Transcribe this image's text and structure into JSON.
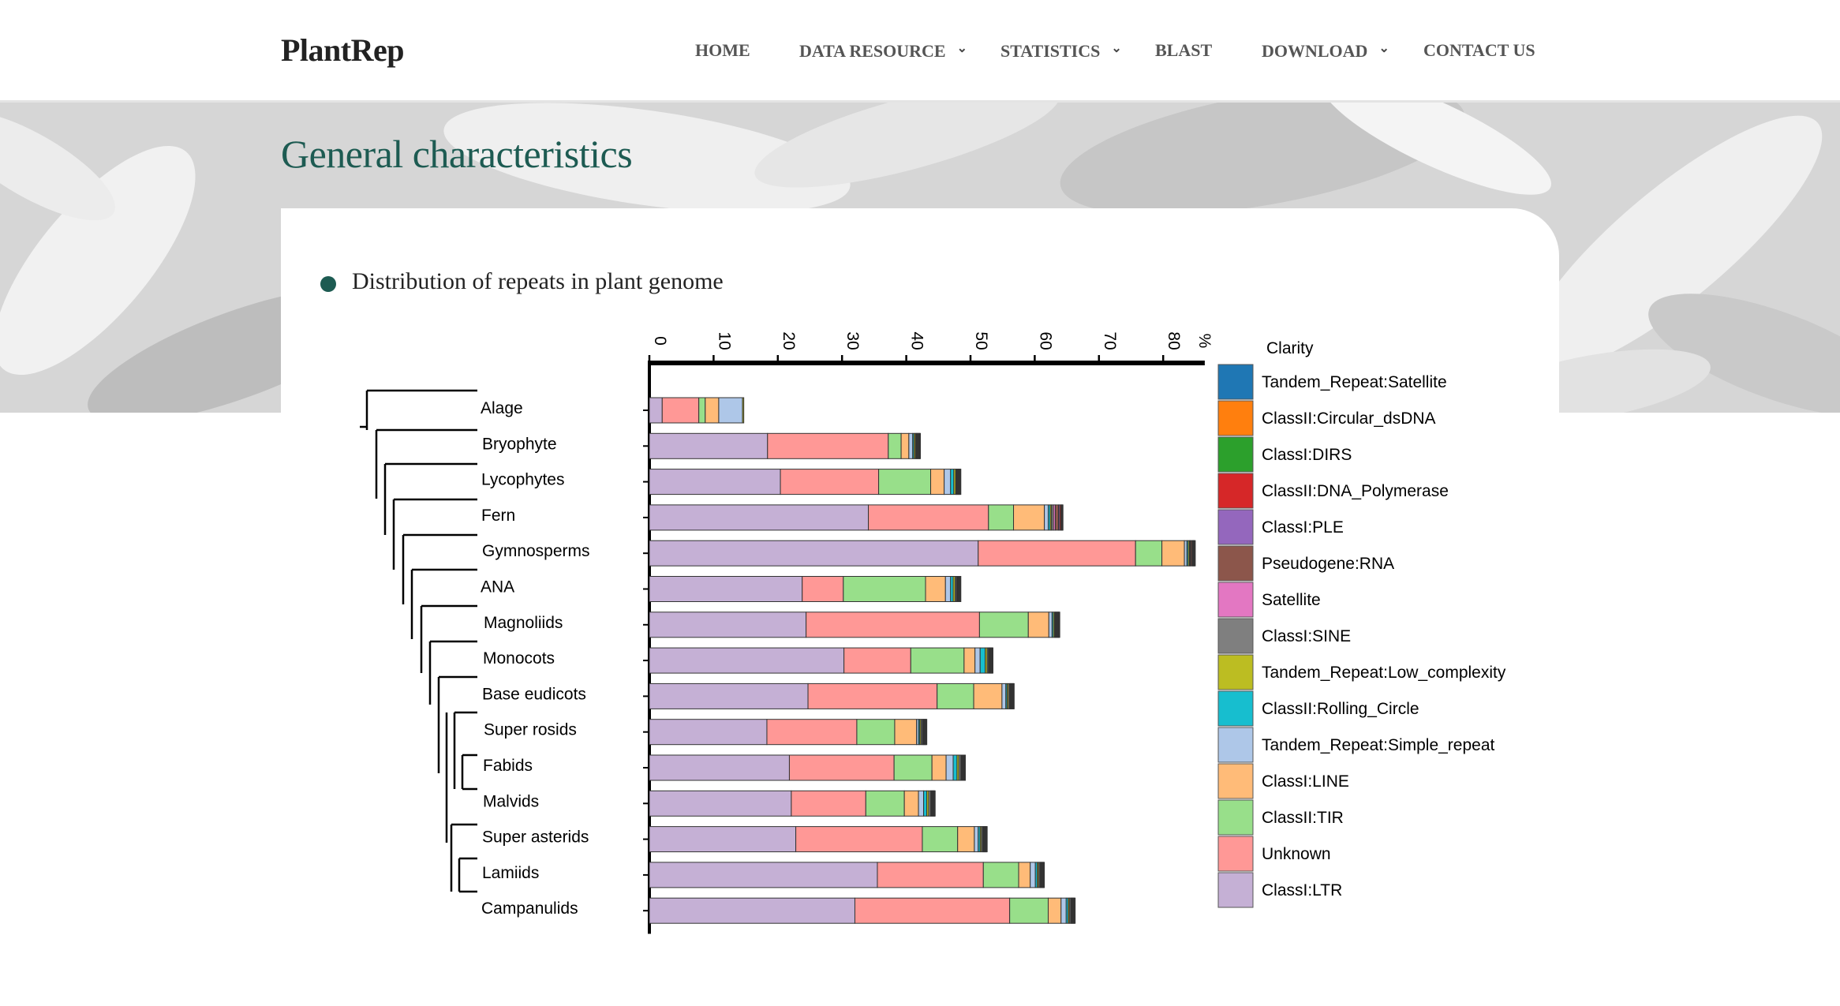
{
  "site": {
    "logo": "PlantRep",
    "nav": [
      {
        "label": "HOME",
        "dropdown": false
      },
      {
        "label": "DATA RESOURCE",
        "dropdown": true
      },
      {
        "label": "STATISTICS",
        "dropdown": true
      },
      {
        "label": "BLAST",
        "dropdown": false
      },
      {
        "label": "DOWNLOAD",
        "dropdown": true
      },
      {
        "label": "CONTACT US",
        "dropdown": false
      }
    ]
  },
  "page": {
    "title": "General characteristics",
    "section_title": "Distribution of repeats in plant genome"
  },
  "chart_data": {
    "type": "bar",
    "orientation": "horizontal",
    "stacked": true,
    "axis_unit": "%",
    "xlim": [
      0,
      85
    ],
    "ticks": [
      0,
      10,
      20,
      30,
      40,
      50,
      60,
      70,
      80
    ],
    "legend_title": "Clarity",
    "legend_position": "right",
    "categories": [
      "Alage",
      "Bryophyte",
      "Lycophytes",
      "Fern",
      "Gymnosperms",
      "ANA",
      "Magnoliids",
      "Monocots",
      "Base eudicots",
      "Super rosids",
      "Fabids",
      "Malvids",
      "Super asterids",
      "Lamiids",
      "Campanulids"
    ],
    "series": [
      {
        "name": "ClassI:LTR",
        "color": "#c5b0d5",
        "values": [
          2,
          18.4,
          20.4,
          34.1,
          51.2,
          23.8,
          24.4,
          30.3,
          24.7,
          18.3,
          21.8,
          22.1,
          22.8,
          35.5,
          32.0
        ]
      },
      {
        "name": "Unknown",
        "color": "#ff9896",
        "values": [
          5.7,
          18.8,
          15.3,
          18.7,
          24.5,
          6.4,
          27.0,
          10.4,
          20.1,
          14.0,
          16.3,
          11.6,
          19.7,
          16.5,
          24.1
        ]
      },
      {
        "name": "ClassII:TIR",
        "color": "#98df8a",
        "values": [
          1.0,
          2.0,
          8.1,
          3.9,
          4.1,
          12.8,
          7.6,
          8.3,
          5.7,
          5.9,
          5.9,
          6.0,
          5.5,
          5.5,
          6.0
        ]
      },
      {
        "name": "ClassI:LINE",
        "color": "#ffbb78",
        "values": [
          2.1,
          1.2,
          2.1,
          4.8,
          3.5,
          3.1,
          3.2,
          1.7,
          4.4,
          3.4,
          2.2,
          2.2,
          2.6,
          1.8,
          2.0
        ]
      },
      {
        "name": "Tandem_Repeat:Simple_repeat",
        "color": "#aec7e8",
        "values": [
          3.7,
          0.6,
          1.0,
          0.6,
          0.4,
          0.8,
          0.5,
          0.8,
          0.6,
          0.3,
          1.1,
          0.8,
          0.6,
          0.8,
          0.8
        ]
      },
      {
        "name": "ClassII:Rolling_Circle",
        "color": "#17becf",
        "values": [
          0,
          0.2,
          0.5,
          0.3,
          0.2,
          0.4,
          0.2,
          0.8,
          0.2,
          0.2,
          0.6,
          0.5,
          0.3,
          0.3,
          0.3
        ]
      },
      {
        "name": "Tandem_Repeat:Low_complexity",
        "color": "#bcbd22",
        "values": [
          0.2,
          0.2,
          0.3,
          0.2,
          0.2,
          0.3,
          0.2,
          0.3,
          0.2,
          0.2,
          0.3,
          0.3,
          0.2,
          0.2,
          0.2
        ]
      },
      {
        "name": "ClassI:SINE",
        "color": "#7f7f7f",
        "values": [
          0,
          0.1,
          0.1,
          0.3,
          0.1,
          0.2,
          0.1,
          0.2,
          0.2,
          0.2,
          0.3,
          0.3,
          0.2,
          0.2,
          0.2
        ]
      },
      {
        "name": "Satellite",
        "color": "#e377c2",
        "values": [
          0,
          0.1,
          0.1,
          0.3,
          0.1,
          0.1,
          0.1,
          0.1,
          0.1,
          0.1,
          0.1,
          0.1,
          0.1,
          0.1,
          0.1
        ]
      },
      {
        "name": "Pseudogene:RNA",
        "color": "#8c564b",
        "values": [
          0,
          0.1,
          0.1,
          0.5,
          0.2,
          0.1,
          0.1,
          0.1,
          0.1,
          0.1,
          0.1,
          0.1,
          0.1,
          0.1,
          0.1
        ]
      },
      {
        "name": "ClassI:PLE",
        "color": "#9467bd",
        "values": [
          0,
          0.1,
          0.1,
          0.2,
          0.1,
          0.1,
          0.1,
          0.1,
          0.1,
          0.1,
          0.1,
          0.1,
          0.1,
          0.1,
          0.1
        ]
      },
      {
        "name": "ClassII:DNA_Polymerase",
        "color": "#d62728",
        "values": [
          0,
          0.1,
          0.1,
          0.2,
          0.1,
          0.1,
          0.1,
          0.1,
          0.1,
          0.1,
          0.1,
          0.1,
          0.1,
          0.1,
          0.1
        ]
      },
      {
        "name": "ClassI:DIRS",
        "color": "#2ca02c",
        "values": [
          0,
          0.1,
          0.1,
          0.1,
          0.1,
          0.1,
          0.1,
          0.1,
          0.1,
          0.1,
          0.1,
          0.1,
          0.1,
          0.1,
          0.1
        ]
      },
      {
        "name": "ClassII:Circular_dsDNA",
        "color": "#ff7f0e",
        "values": [
          0,
          0.1,
          0.1,
          0.1,
          0.1,
          0.1,
          0.1,
          0.1,
          0.1,
          0.1,
          0.1,
          0.1,
          0.1,
          0.1,
          0.1
        ]
      },
      {
        "name": "Tandem_Repeat:Satellite",
        "color": "#1f77b4",
        "values": [
          0,
          0.1,
          0.1,
          0.1,
          0.1,
          0.1,
          0.1,
          0.1,
          0.1,
          0.1,
          0.1,
          0.1,
          0.1,
          0.1,
          0.1
        ]
      }
    ]
  }
}
